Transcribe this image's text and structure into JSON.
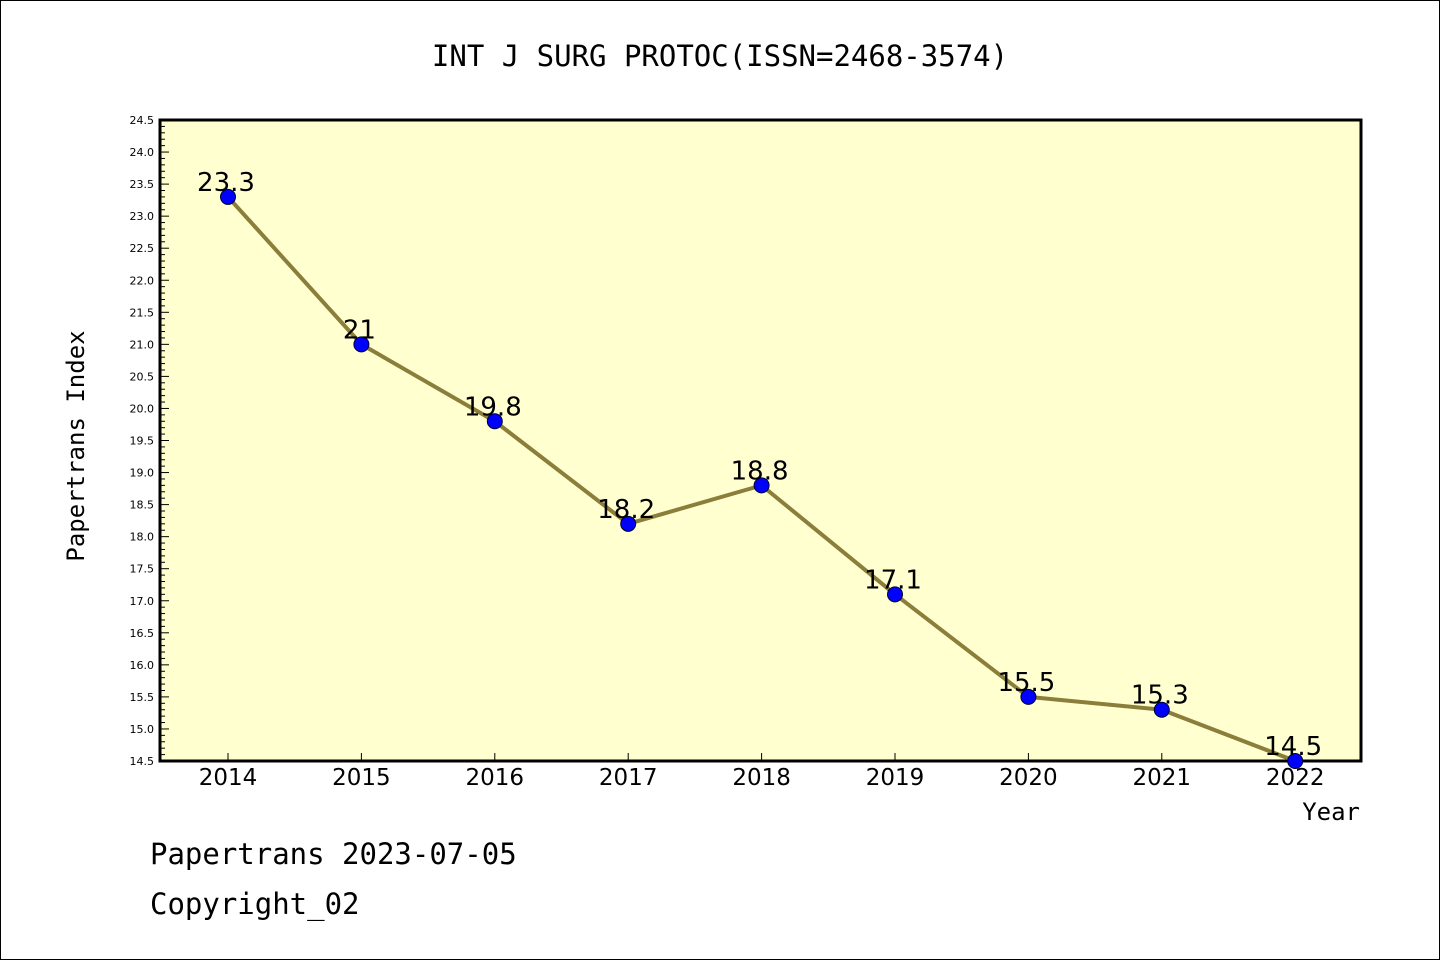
{
  "chart_data": {
    "type": "line",
    "title": "INT J SURG PROTOC(ISSN=2468-3574)",
    "xlabel": "Year",
    "ylabel": "Papertrans Index",
    "categories": [
      "2014",
      "2015",
      "2016",
      "2017",
      "2018",
      "2019",
      "2020",
      "2021",
      "2022"
    ],
    "series": [
      {
        "values": [
          23.3,
          21,
          19.8,
          18.2,
          18.8,
          17.1,
          15.5,
          15.3,
          14.5
        ],
        "labels": [
          "23.3",
          "21",
          "19.8",
          "18.2",
          "18.8",
          "17.1",
          "15.5",
          "15.3",
          "14.5"
        ]
      }
    ],
    "ylim": [
      14.5,
      24.5
    ],
    "y_major_ticks": [
      "14.5",
      "15.0",
      "15.5",
      "16.0",
      "16.5",
      "17.0",
      "17.5",
      "18.0",
      "18.5",
      "19.0",
      "19.5",
      "20.0",
      "20.5",
      "21.0",
      "21.5",
      "22.0",
      "22.5",
      "23.0",
      "23.5",
      "24.0",
      "24.5"
    ],
    "grid": false,
    "plot_background": "#ffffd0",
    "line_color": "#8b7d3a",
    "marker_color": "#0000ff"
  },
  "footer": {
    "line1": "Papertrans 2023-07-05",
    "line2": "Copyright_02"
  }
}
